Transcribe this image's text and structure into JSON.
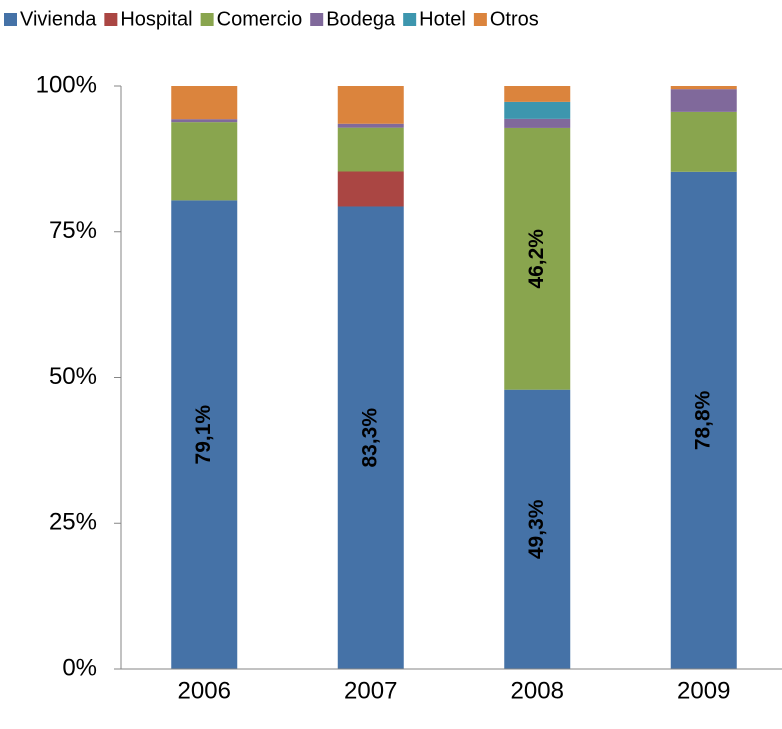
{
  "chart_data": {
    "type": "stacked_bar_100",
    "categories": [
      "2006",
      "2007",
      "2008",
      "2009"
    ],
    "series": [
      {
        "name": "Vivienda",
        "color": "#4572a7",
        "values": [
          79.1,
          83.3,
          49.3,
          78.8
        ],
        "value_labels": [
          "79,1%",
          "83,3%",
          "49,3%",
          "78,8%"
        ],
        "label_color": "#ffffff"
      },
      {
        "name": "Hospital",
        "color": "#aa4643",
        "values": [
          0,
          6.3,
          0,
          0
        ]
      },
      {
        "name": "Comercio",
        "color": "#89a54e",
        "values": [
          13.2,
          7.9,
          46.2,
          9.5
        ],
        "value_labels": [
          null,
          null,
          "46,2%",
          null
        ],
        "label_color": "#000000"
      },
      {
        "name": "Bodega",
        "color": "#80699b",
        "values": [
          0.5,
          0.7,
          1.6,
          3.6
        ]
      },
      {
        "name": "Hotel",
        "color": "#3d96ae",
        "values": [
          0,
          0,
          3.0,
          0
        ]
      },
      {
        "name": "Otros",
        "color": "#db843d",
        "values": [
          5.6,
          6.8,
          2.8,
          0.5
        ]
      }
    ],
    "ylim": [
      0,
      100
    ],
    "yticks": [
      {
        "value": 0,
        "label": "0%"
      },
      {
        "value": 25,
        "label": "25%"
      },
      {
        "value": 50,
        "label": "50%"
      },
      {
        "value": 75,
        "label": "75%"
      },
      {
        "value": 100,
        "label": "100%"
      }
    ],
    "legend": "top"
  }
}
